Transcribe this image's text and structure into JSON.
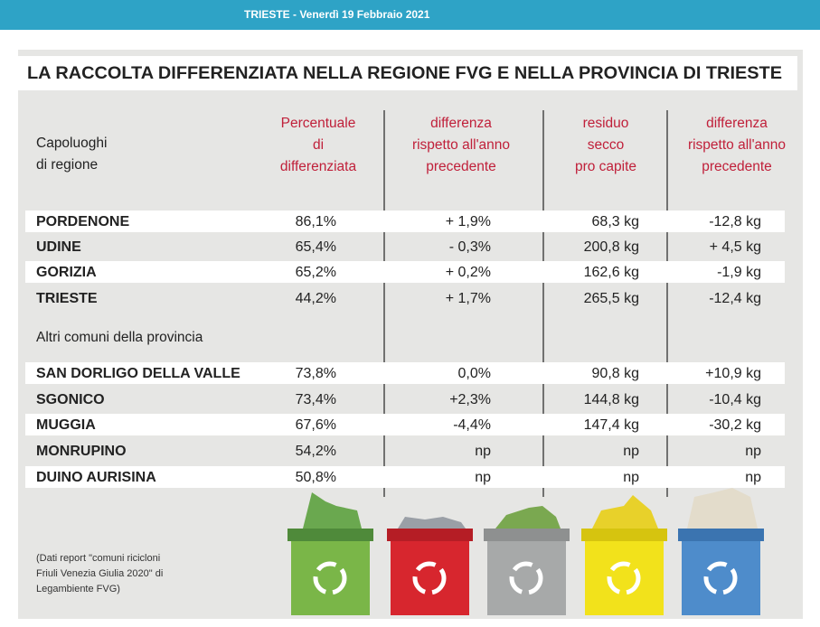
{
  "header": {
    "date": "TRIESTE - Venerdì 19 Febbraio 2021"
  },
  "title": "LA RACCOLTA DIFFERENZIATA NELLA REGIONE FVG E NELLA PROVINCIA DI TRIESTE",
  "table": {
    "columns": [
      [
        "Capoluoghi",
        "di regione"
      ],
      [
        "Percentuale",
        "di",
        "differenziata"
      ],
      [
        "differenza",
        "rispetto all'anno",
        "precedente"
      ],
      [
        "residuo",
        "secco",
        "pro capite"
      ],
      [
        "differenza",
        "rispetto all'anno",
        "precedente"
      ]
    ],
    "rows": [
      [
        "PORDENONE",
        "86,1%",
        "+ 1,9%",
        "68,3 kg",
        "-12,8 kg"
      ],
      [
        "UDINE",
        "65,4%",
        "- 0,3%",
        "200,8 kg",
        "+ 4,5 kg"
      ],
      [
        "GORIZIA",
        "65,2%",
        "+ 0,2%",
        "162,6 kg",
        "-1,9 kg"
      ],
      [
        "TRIESTE",
        "44,2%",
        "+ 1,7%",
        "265,5 kg",
        "-12,4 kg"
      ]
    ],
    "section": "Altri comuni della provincia",
    "rows2": [
      [
        "SAN DORLIGO DELLA VALLE",
        "73,8%",
        "0,0%",
        "90,8 kg",
        "+10,9 kg"
      ],
      [
        "SGONICO",
        "73,4%",
        "+2,3%",
        "144,8 kg",
        "-10,4 kg"
      ],
      [
        "MUGGIA",
        "67,6%",
        "-4,4%",
        "147,4 kg",
        "-30,2 kg"
      ],
      [
        "MONRUPINO",
        "54,2%",
        "np",
        "np",
        "np"
      ],
      [
        "DUINO AURISINA",
        "50,8%",
        "np",
        "np",
        "np"
      ]
    ]
  },
  "footnote": [
    "(Dati report \"comuni ricicloni",
    "Friuli Venezia Giulia 2020\" di",
    "Legambiente FVG)"
  ]
}
